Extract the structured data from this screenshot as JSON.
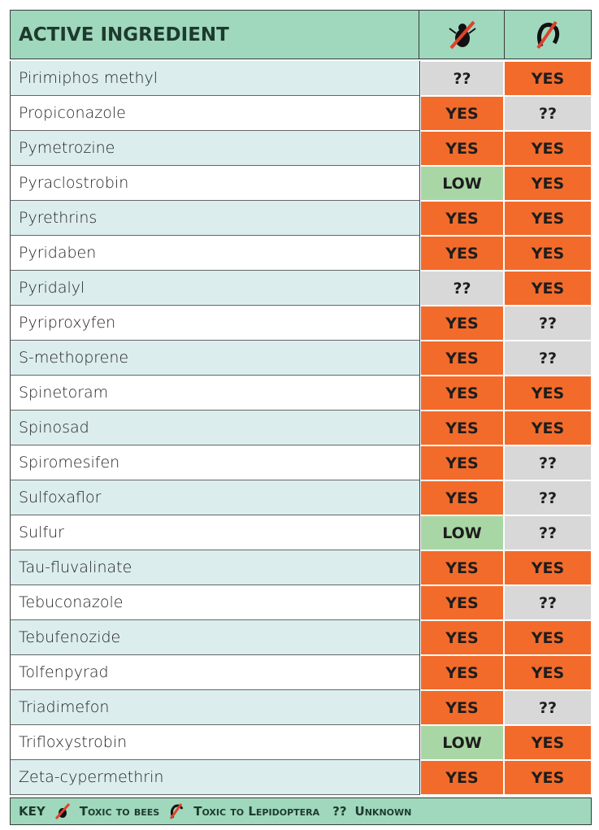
{
  "table": {
    "header": "ACTIVE INGREDIENT",
    "rows": [
      [
        "Pirimiphos methyl",
        "??",
        "YES"
      ],
      [
        "Propiconazole",
        "YES",
        "??"
      ],
      [
        "Pymetrozine",
        "YES",
        "YES"
      ],
      [
        "Pyraclostrobin",
        "LOW",
        "YES"
      ],
      [
        "Pyrethrins",
        "YES",
        "YES"
      ],
      [
        "Pyridaben",
        "YES",
        "YES"
      ],
      [
        "Pyridalyl",
        "??",
        "YES"
      ],
      [
        "Pyriproxyfen",
        "YES",
        "??"
      ],
      [
        "S-methoprene",
        "YES",
        "??"
      ],
      [
        "Spinetoram",
        "YES",
        "YES"
      ],
      [
        "Spinosad",
        "YES",
        "YES"
      ],
      [
        "Spiromesifen",
        "YES",
        "??"
      ],
      [
        "Sulfoxaflor",
        "YES",
        "??"
      ],
      [
        "Sulfur",
        "LOW",
        "??"
      ],
      [
        "Tau-fluvalinate",
        "YES",
        "YES"
      ],
      [
        "Tebuconazole",
        "YES",
        "??"
      ],
      [
        "Tebufenozide",
        "YES",
        "YES"
      ],
      [
        "Tolfenpyrad",
        "YES",
        "YES"
      ],
      [
        "Triadimefon",
        "YES",
        "??"
      ],
      [
        "Trifloxystrobin",
        "LOW",
        "YES"
      ],
      [
        "Zeta-cypermethrin",
        "YES",
        "YES"
      ]
    ]
  },
  "key": {
    "label": "KEY",
    "bees": "Toxic to bees",
    "lepidoptera": "Toxic to Lepidoptera",
    "unknown_symbol": "??",
    "unknown": "Unknown"
  }
}
